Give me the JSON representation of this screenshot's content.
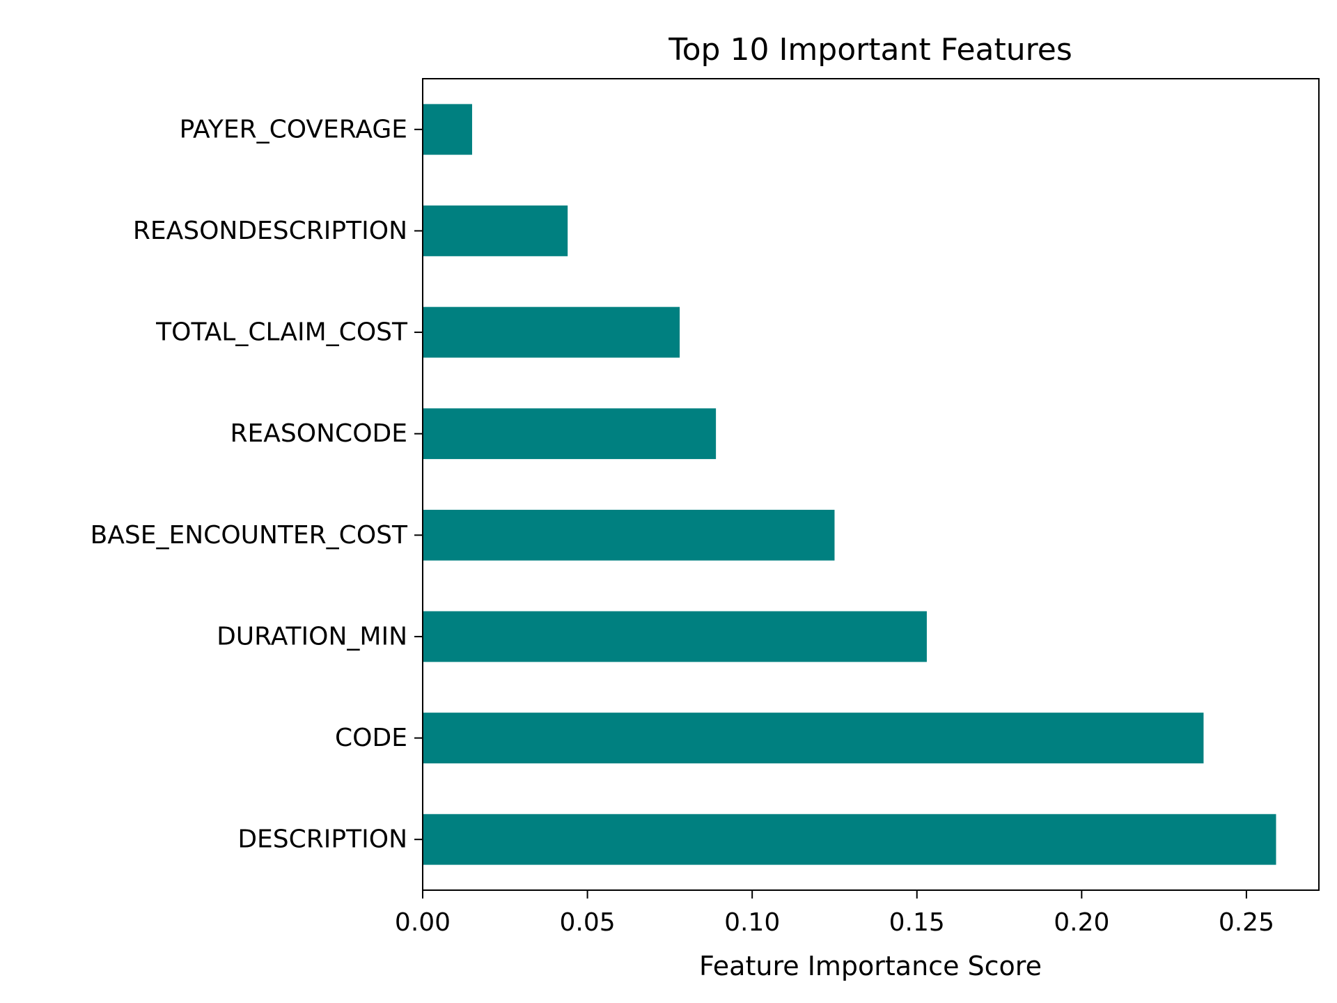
{
  "chart_data": {
    "type": "bar",
    "orientation": "horizontal",
    "title": "Top 10 Important Features",
    "xlabel": "Feature Importance Score",
    "ylabel": "",
    "categories": [
      "PAYER_COVERAGE",
      "REASONDESCRIPTION",
      "TOTAL_CLAIM_COST",
      "REASONCODE",
      "BASE_ENCOUNTER_COST",
      "DURATION_MIN",
      "CODE",
      "DESCRIPTION"
    ],
    "values": [
      0.015,
      0.044,
      0.078,
      0.089,
      0.125,
      0.153,
      0.237,
      0.259
    ],
    "xlim": [
      0,
      0.272
    ],
    "xticks": [
      0.0,
      0.05,
      0.1,
      0.15,
      0.2,
      0.25
    ],
    "xtick_labels": [
      "0.00",
      "0.05",
      "0.10",
      "0.15",
      "0.20",
      "0.25"
    ],
    "bar_color": "#008080",
    "grid": false,
    "legend": "none"
  }
}
